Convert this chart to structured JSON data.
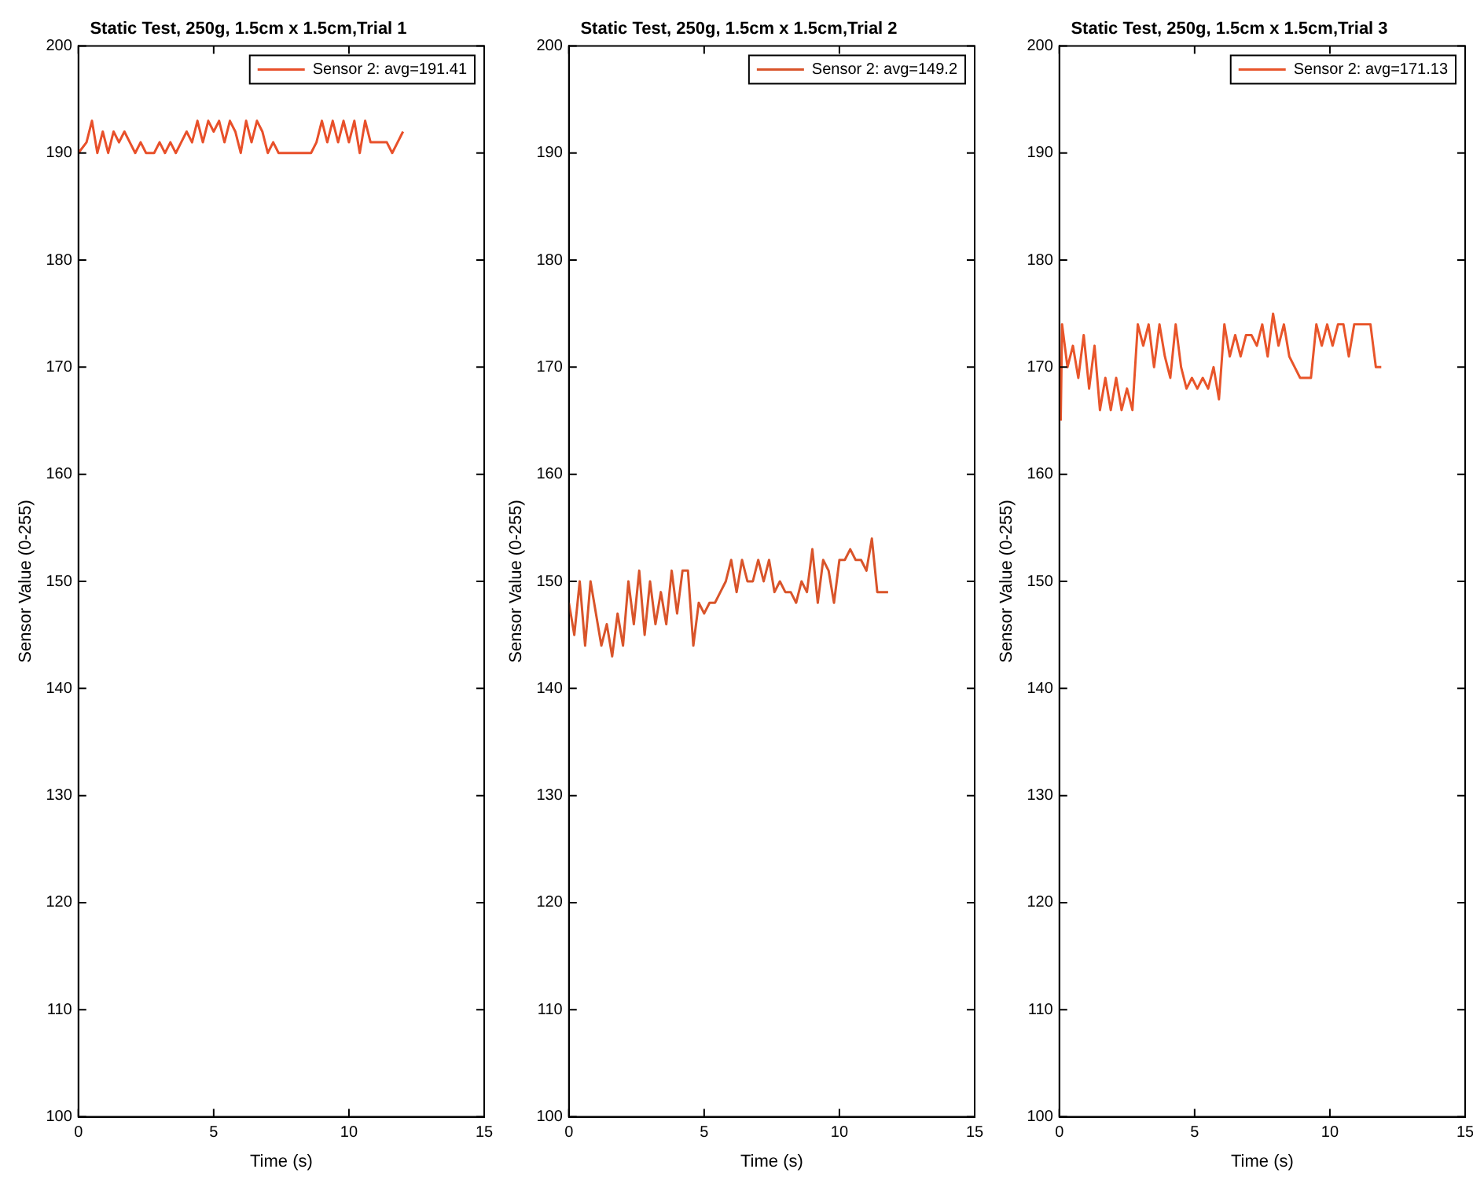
{
  "chart_data": [
    {
      "type": "line",
      "title": "Static Test, 250g, 1.5cm x 1.5cm,Trial 1",
      "xlabel": "Time (s)",
      "ylabel": "Sensor Value (0-255)",
      "xlim": [
        0,
        15
      ],
      "xticks": [
        0,
        5,
        10,
        15
      ],
      "ylim": [
        100,
        200
      ],
      "yticks": [
        100,
        110,
        120,
        130,
        140,
        150,
        160,
        170,
        180,
        190,
        200
      ],
      "legend": "top right",
      "x": [
        0,
        0.3,
        0.5,
        0.7,
        0.9,
        1.1,
        1.3,
        1.5,
        1.7,
        1.9,
        2.1,
        2.3,
        2.5,
        2.8,
        3.0,
        3.2,
        3.4,
        3.6,
        3.8,
        4.0,
        4.2,
        4.4,
        4.6,
        4.8,
        5.0,
        5.2,
        5.4,
        5.6,
        5.8,
        6.0,
        6.2,
        6.4,
        6.6,
        6.8,
        7.0,
        7.2,
        7.4,
        8.0,
        8.6,
        8.8,
        9.0,
        9.2,
        9.4,
        9.6,
        9.8,
        10.0,
        10.2,
        10.4,
        10.6,
        10.8,
        11.0,
        11.4,
        11.6,
        11.8,
        12.0
      ],
      "series": [
        {
          "name": "Sensor 2: avg=191.41",
          "color": "#e8502a",
          "values": [
            190,
            191,
            193,
            190,
            192,
            190,
            192,
            191,
            192,
            191,
            190,
            191,
            190,
            190,
            191,
            190,
            191,
            190,
            191,
            192,
            191,
            193,
            191,
            193,
            192,
            193,
            191,
            193,
            192,
            190,
            193,
            191,
            193,
            192,
            190,
            191,
            190,
            190,
            190,
            191,
            193,
            191,
            193,
            191,
            193,
            191,
            193,
            190,
            193,
            191,
            191,
            191,
            190,
            191,
            192
          ]
        }
      ]
    },
    {
      "type": "line",
      "title": "Static Test, 250g, 1.5cm x 1.5cm,Trial 2",
      "xlabel": "Time (s)",
      "ylabel": "Sensor Value (0-255)",
      "xlim": [
        0,
        15
      ],
      "xticks": [
        0,
        5,
        10,
        15
      ],
      "ylim": [
        100,
        200
      ],
      "yticks": [
        100,
        110,
        120,
        130,
        140,
        150,
        160,
        170,
        180,
        190,
        200
      ],
      "legend": "top right",
      "x": [
        0,
        0.2,
        0.4,
        0.6,
        0.8,
        1.0,
        1.2,
        1.4,
        1.6,
        1.8,
        2.0,
        2.2,
        2.4,
        2.6,
        2.8,
        3.0,
        3.2,
        3.4,
        3.6,
        3.8,
        4.0,
        4.2,
        4.4,
        4.6,
        4.8,
        5.0,
        5.2,
        5.4,
        5.6,
        5.8,
        6.0,
        6.2,
        6.4,
        6.6,
        6.8,
        7.0,
        7.2,
        7.4,
        7.6,
        7.8,
        8.0,
        8.2,
        8.4,
        8.6,
        8.8,
        9.0,
        9.2,
        9.4,
        9.6,
        9.8,
        10.0,
        10.2,
        10.4,
        10.6,
        10.8,
        11.0,
        11.2,
        11.4,
        11.8
      ],
      "series": [
        {
          "name": "Sensor 2: avg=149.2",
          "color": "#d9542a",
          "values": [
            148,
            145,
            150,
            144,
            150,
            147,
            144,
            146,
            143,
            147,
            144,
            150,
            146,
            151,
            145,
            150,
            146,
            149,
            146,
            151,
            147,
            151,
            151,
            144,
            148,
            147,
            148,
            148,
            149,
            150,
            152,
            149,
            152,
            150,
            150,
            152,
            150,
            152,
            149,
            150,
            149,
            149,
            148,
            150,
            149,
            153,
            148,
            152,
            151,
            148,
            152,
            152,
            153,
            152,
            152,
            151,
            154,
            149,
            149
          ]
        }
      ]
    },
    {
      "type": "line",
      "title": "Static Test, 250g, 1.5cm x 1.5cm,Trial 3",
      "xlabel": "Time (s)",
      "ylabel": "Sensor Value (0-255)",
      "xlim": [
        0,
        15
      ],
      "xticks": [
        0,
        5,
        10,
        15
      ],
      "ylim": [
        100,
        200
      ],
      "yticks": [
        100,
        110,
        120,
        130,
        140,
        150,
        160,
        170,
        180,
        190,
        200
      ],
      "legend": "top right",
      "x": [
        0.05,
        0.1,
        0.3,
        0.5,
        0.7,
        0.9,
        1.1,
        1.3,
        1.5,
        1.7,
        1.9,
        2.1,
        2.3,
        2.5,
        2.7,
        2.9,
        3.1,
        3.3,
        3.5,
        3.7,
        3.9,
        4.1,
        4.3,
        4.5,
        4.7,
        4.9,
        5.1,
        5.3,
        5.5,
        5.7,
        5.9,
        6.1,
        6.3,
        6.5,
        6.7,
        6.9,
        7.1,
        7.3,
        7.5,
        7.7,
        7.9,
        8.1,
        8.3,
        8.5,
        8.7,
        8.9,
        9.1,
        9.3,
        9.5,
        9.7,
        9.9,
        10.1,
        10.3,
        10.5,
        10.7,
        10.9,
        11.1,
        11.3,
        11.5,
        11.7,
        11.9
      ],
      "series": [
        {
          "name": "Sensor 2: avg=171.13",
          "color": "#e8552a",
          "values": [
            165,
            174,
            170,
            172,
            169,
            173,
            168,
            172,
            166,
            169,
            166,
            169,
            166,
            168,
            166,
            174,
            172,
            174,
            170,
            174,
            171,
            169,
            174,
            170,
            168,
            169,
            168,
            169,
            168,
            170,
            167,
            174,
            171,
            173,
            171,
            173,
            173,
            172,
            174,
            171,
            175,
            172,
            174,
            171,
            170,
            169,
            169,
            169,
            174,
            172,
            174,
            172,
            174,
            174,
            171,
            174,
            174,
            174,
            174,
            170,
            170
          ]
        }
      ]
    }
  ]
}
